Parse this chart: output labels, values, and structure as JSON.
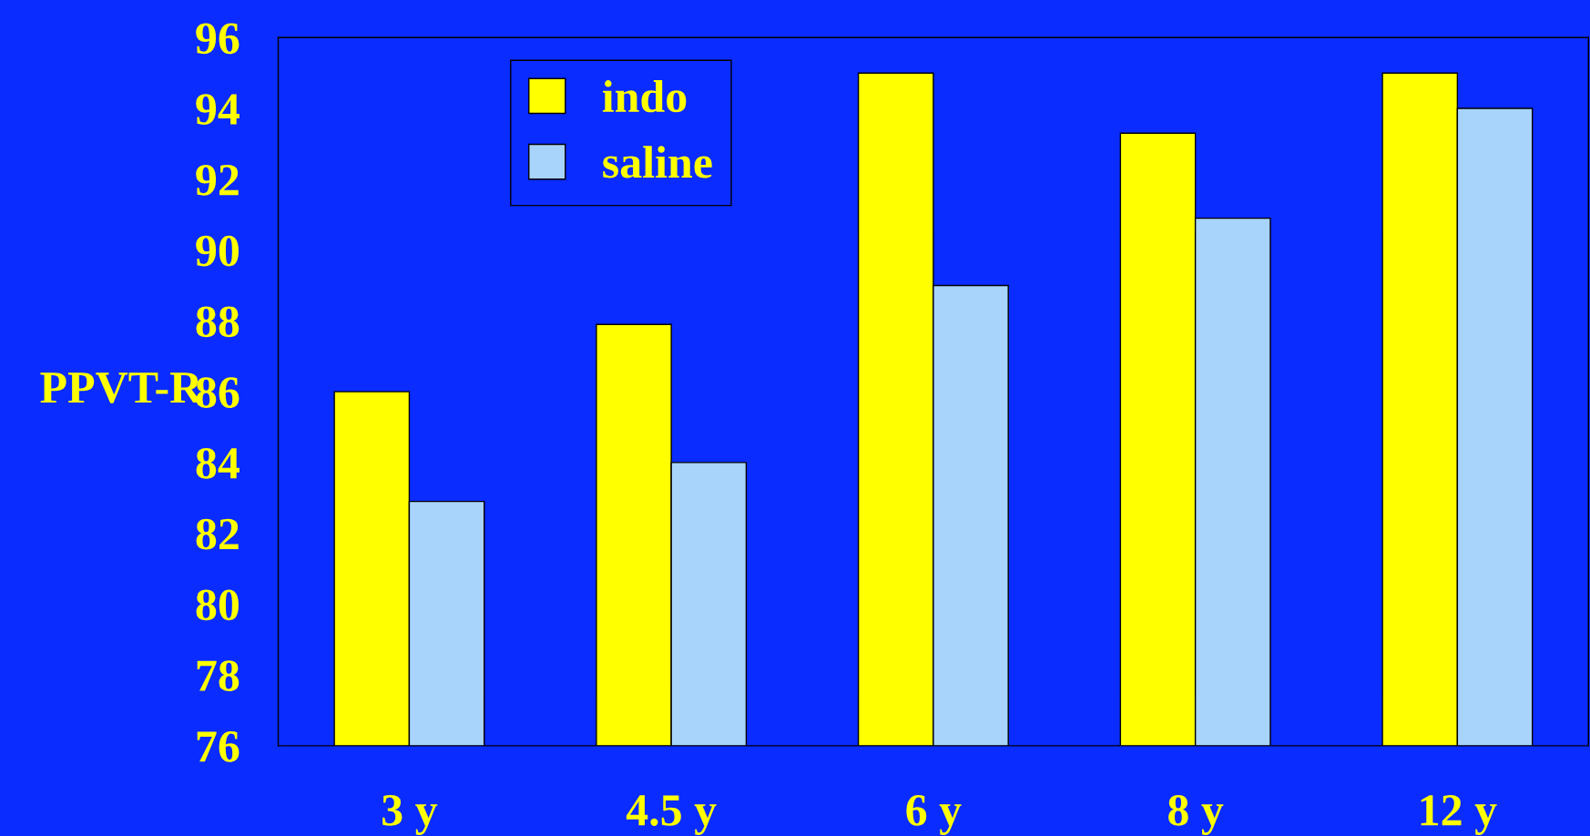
{
  "chart_data": {
    "type": "bar",
    "ylabel": "PPVT-R",
    "categories": [
      "3 y",
      "4.5 y",
      "6 y",
      "8 y",
      "12 y"
    ],
    "series": [
      {
        "name": "indo",
        "color": "#ffff00",
        "values": [
          86,
          87.9,
          95,
          93.3,
          95
        ]
      },
      {
        "name": "saline",
        "color": "#a8d4fc",
        "values": [
          82.9,
          84,
          89,
          90.9,
          94
        ]
      }
    ],
    "ylim": [
      76,
      96
    ],
    "yticks": [
      76,
      78,
      80,
      82,
      84,
      86,
      88,
      90,
      92,
      94,
      96
    ],
    "grid": false,
    "legend": "top left"
  }
}
